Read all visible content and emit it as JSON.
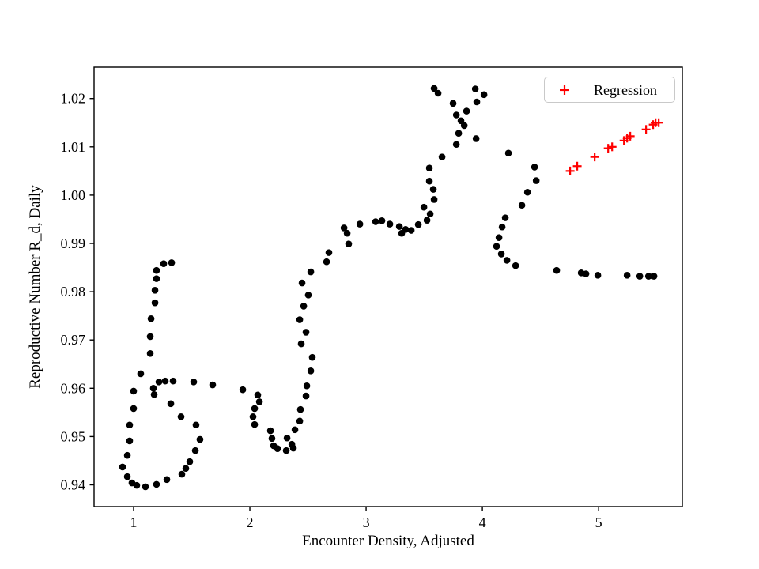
{
  "figure": {
    "background": "#ffffff"
  },
  "chart_data": {
    "type": "scatter",
    "title": "",
    "xlabel": "Encounter Density, Adjusted",
    "ylabel": "Reproductive Number R_d, Daily",
    "xlim": [
      0.66,
      5.72
    ],
    "ylim": [
      0.9355,
      1.0265
    ],
    "grid": false,
    "xticks": [
      {
        "v": 1,
        "label": "1"
      },
      {
        "v": 2,
        "label": "2"
      },
      {
        "v": 3,
        "label": "3"
      },
      {
        "v": 4,
        "label": "4"
      },
      {
        "v": 5,
        "label": "5"
      }
    ],
    "yticks": [
      {
        "v": 0.94,
        "label": "0.94"
      },
      {
        "v": 0.95,
        "label": "0.95"
      },
      {
        "v": 0.96,
        "label": "0.96"
      },
      {
        "v": 0.97,
        "label": "0.97"
      },
      {
        "v": 0.98,
        "label": "0.98"
      },
      {
        "v": 0.99,
        "label": "0.99"
      },
      {
        "v": 1.0,
        "label": "1.00"
      },
      {
        "v": 1.01,
        "label": "1.01"
      },
      {
        "v": 1.02,
        "label": "1.02"
      }
    ],
    "legend": {
      "position": "upper right",
      "entries": [
        {
          "label": "Regression",
          "marker": "plus",
          "color": "#ff0000"
        }
      ]
    },
    "series": [
      {
        "name": "daily-trajectory",
        "marker": "circle",
        "color": "#000000",
        "points": [
          [
            1.327,
            0.986
          ],
          [
            1.259,
            0.9858
          ],
          [
            1.197,
            0.9844
          ],
          [
            1.197,
            0.9827
          ],
          [
            1.184,
            0.9803
          ],
          [
            1.184,
            0.9777
          ],
          [
            1.15,
            0.9744
          ],
          [
            1.143,
            0.9707
          ],
          [
            1.143,
            0.9672
          ],
          [
            1.061,
            0.963
          ],
          [
            1.0,
            0.9594
          ],
          [
            1.0,
            0.9558
          ],
          [
            0.966,
            0.9524
          ],
          [
            0.966,
            0.9491
          ],
          [
            0.946,
            0.9461
          ],
          [
            0.905,
            0.9437
          ],
          [
            0.946,
            0.9417
          ],
          [
            0.986,
            0.9404
          ],
          [
            1.027,
            0.9399
          ],
          [
            1.102,
            0.9396
          ],
          [
            1.197,
            0.9401
          ],
          [
            1.286,
            0.9411
          ],
          [
            1.415,
            0.9422
          ],
          [
            1.449,
            0.9434
          ],
          [
            1.483,
            0.9448
          ],
          [
            1.531,
            0.9471
          ],
          [
            1.571,
            0.9494
          ],
          [
            1.537,
            0.9524
          ],
          [
            1.408,
            0.9541
          ],
          [
            1.32,
            0.9568
          ],
          [
            1.177,
            0.9587
          ],
          [
            1.17,
            0.96
          ],
          [
            1.218,
            0.9613
          ],
          [
            1.272,
            0.9615
          ],
          [
            1.34,
            0.9615
          ],
          [
            1.517,
            0.9613
          ],
          [
            1.68,
            0.9607
          ],
          [
            1.939,
            0.9597
          ],
          [
            2.068,
            0.9586
          ],
          [
            2.082,
            0.9572
          ],
          [
            2.041,
            0.9558
          ],
          [
            2.027,
            0.9541
          ],
          [
            2.041,
            0.9525
          ],
          [
            2.177,
            0.9512
          ],
          [
            2.19,
            0.9496
          ],
          [
            2.204,
            0.9481
          ],
          [
            2.238,
            0.9475
          ],
          [
            2.313,
            0.9471
          ],
          [
            2.374,
            0.9476
          ],
          [
            2.361,
            0.9484
          ],
          [
            2.32,
            0.9497
          ],
          [
            2.388,
            0.9514
          ],
          [
            2.429,
            0.9532
          ],
          [
            2.435,
            0.9556
          ],
          [
            2.483,
            0.9584
          ],
          [
            2.49,
            0.9605
          ],
          [
            2.524,
            0.9636
          ],
          [
            2.537,
            0.9664
          ],
          [
            2.442,
            0.9692
          ],
          [
            2.483,
            0.9716
          ],
          [
            2.429,
            0.9742
          ],
          [
            2.463,
            0.977
          ],
          [
            2.503,
            0.9793
          ],
          [
            2.449,
            0.9818
          ],
          [
            2.524,
            0.9841
          ],
          [
            2.66,
            0.9862
          ],
          [
            2.68,
            0.9881
          ],
          [
            2.85,
            0.9899
          ],
          [
            2.837,
            0.9921
          ],
          [
            2.81,
            0.9932
          ],
          [
            2.946,
            0.994
          ],
          [
            3.082,
            0.9945
          ],
          [
            3.136,
            0.9947
          ],
          [
            3.204,
            0.994
          ],
          [
            3.286,
            0.9935
          ],
          [
            3.306,
            0.9921
          ],
          [
            3.34,
            0.9929
          ],
          [
            3.388,
            0.9927
          ],
          [
            3.449,
            0.9939
          ],
          [
            3.524,
            0.9948
          ],
          [
            3.551,
            0.9961
          ],
          [
            3.497,
            0.9975
          ],
          [
            3.585,
            0.9991
          ],
          [
            3.578,
            1.0012
          ],
          [
            3.544,
            1.0029
          ],
          [
            3.544,
            1.0056
          ],
          [
            3.653,
            1.0079
          ],
          [
            3.776,
            1.0105
          ],
          [
            3.796,
            1.0128
          ],
          [
            3.844,
            1.0144
          ],
          [
            3.816,
            1.0154
          ],
          [
            3.776,
            1.0166
          ],
          [
            3.748,
            1.019
          ],
          [
            3.619,
            1.0211
          ],
          [
            3.585,
            1.0221
          ],
          [
            3.939,
            1.022
          ],
          [
            4.014,
            1.0208
          ],
          [
            3.952,
            1.0193
          ],
          [
            3.864,
            1.0174
          ],
          [
            3.946,
            1.0117
          ],
          [
            4.224,
            1.0087
          ],
          [
            4.449,
            1.0058
          ],
          [
            4.463,
            1.003
          ],
          [
            4.388,
            1.0006
          ],
          [
            4.34,
            0.9979
          ],
          [
            4.197,
            0.9953
          ],
          [
            4.17,
            0.9934
          ],
          [
            4.143,
            0.9912
          ],
          [
            4.122,
            0.9894
          ],
          [
            4.163,
            0.9878
          ],
          [
            4.211,
            0.9865
          ],
          [
            4.286,
            0.9854
          ],
          [
            4.639,
            0.9844
          ],
          [
            4.85,
            0.9839
          ],
          [
            4.891,
            0.9837
          ],
          [
            4.993,
            0.9834
          ],
          [
            5.245,
            0.9834
          ],
          [
            5.354,
            0.9832
          ],
          [
            5.429,
            0.9832
          ],
          [
            5.476,
            0.9832
          ]
        ]
      },
      {
        "name": "Regression",
        "marker": "plus",
        "color": "#ff0000",
        "points": [
          [
            4.755,
            1.005
          ],
          [
            4.816,
            1.006
          ],
          [
            4.966,
            1.0079
          ],
          [
            5.082,
            1.0097
          ],
          [
            5.116,
            1.01
          ],
          [
            5.218,
            1.0113
          ],
          [
            5.245,
            1.0118
          ],
          [
            5.272,
            1.0122
          ],
          [
            5.408,
            1.0136
          ],
          [
            5.469,
            1.0146
          ],
          [
            5.49,
            1.015
          ],
          [
            5.517,
            1.015
          ]
        ]
      }
    ]
  }
}
